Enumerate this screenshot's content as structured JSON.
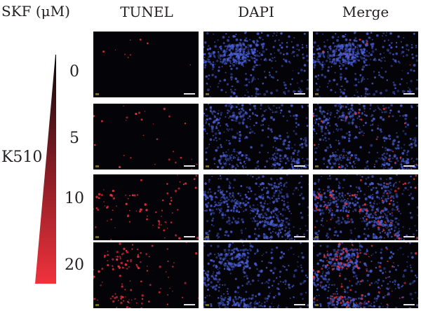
{
  "treatment_label": "SKF (μM)",
  "cell_label": "K510",
  "columns": [
    "TUNEL",
    "DAPI",
    "Merge"
  ],
  "doses": [
    "0",
    "5",
    "10",
    "20"
  ],
  "colors": {
    "tunel": "#e8303c",
    "dapi": "#4a5fd6",
    "wedge_dark": "#0a0a0a",
    "wedge_light": "#f0323c",
    "panel_bg": "#030308"
  },
  "tunel_positive_level": [
    0.03,
    0.15,
    0.45,
    0.75
  ]
}
